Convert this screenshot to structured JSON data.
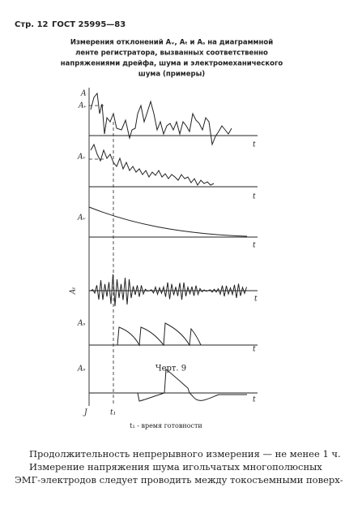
{
  "header": {
    "page": "Стр. 12",
    "standard": "ГОСТ 25995—83"
  },
  "title": [
    "Измерения отклонений Aᵥ, Aₜ и Aₛ на диаграммной",
    "ленте регистратора, вызванных соответственно",
    "напряжениями дрейфа, шума и электромеханического",
    "шума (примеры)"
  ],
  "figure": {
    "labels": [
      "A",
      "Aᵥ",
      "t",
      "Aᵥ",
      "t",
      "Aᵥ",
      "t",
      "Aₜ",
      "t",
      "Aₛ",
      "t",
      "Aₛ",
      "t",
      "J",
      "t₁"
    ],
    "caption": "Черт. 9",
    "note": "t₁ - время готовности"
  },
  "body": [
    "Продолжительность непрерывного измерения — не менее 1 ч.",
    "Измерение напряжения шума игольчатых многополюсных",
    "ЭМГ-электродов следует проводить между токосъемными поверх-"
  ]
}
